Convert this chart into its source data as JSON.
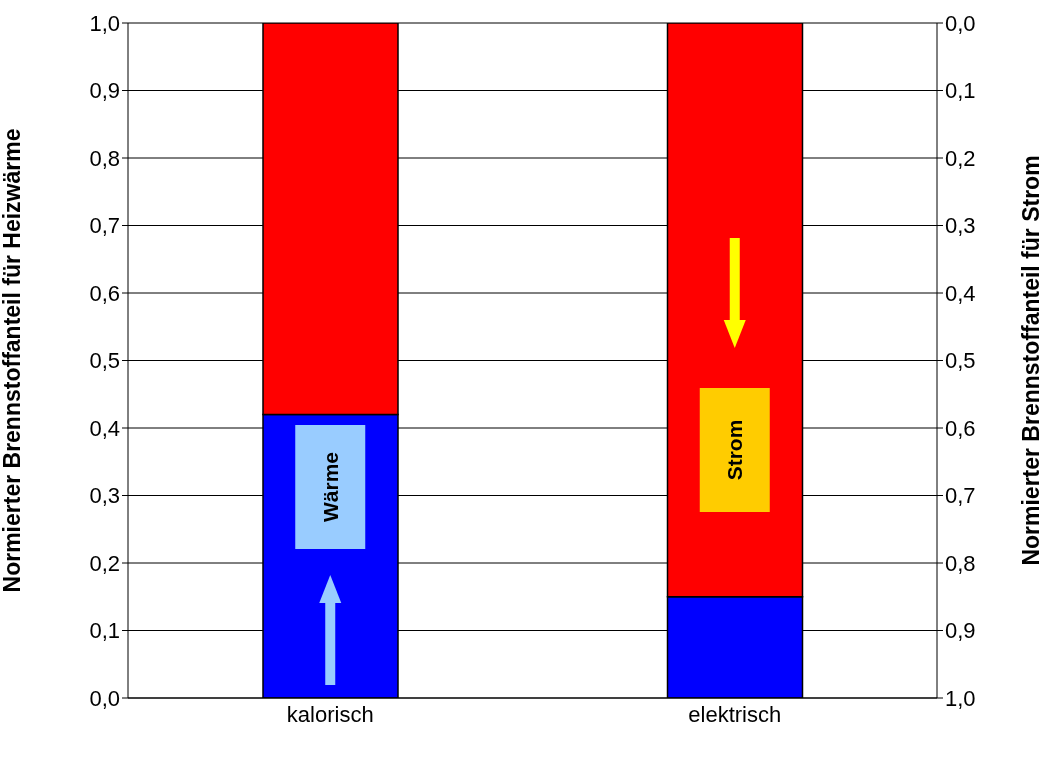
{
  "chart_data": {
    "type": "bar",
    "stacked": true,
    "categories": [
      "kalorisch",
      "elektrisch"
    ],
    "series": [
      {
        "color": "#0000ff",
        "values": [
          0.42,
          0.15
        ]
      },
      {
        "color": "#ff0000",
        "values": [
          0.58,
          0.85
        ]
      }
    ],
    "ylim": [
      0,
      1
    ],
    "yticks": [
      {
        "value": 0,
        "label": "0,0"
      },
      {
        "value": 0.1,
        "label": "0,1"
      },
      {
        "value": 0.2,
        "label": "0,2"
      },
      {
        "value": 0.3,
        "label": "0,3"
      },
      {
        "value": 0.4,
        "label": "0,4"
      },
      {
        "value": 0.5,
        "label": "0,5"
      },
      {
        "value": 0.6,
        "label": "0,6"
      },
      {
        "value": 0.7,
        "label": "0,7"
      },
      {
        "value": 0.8,
        "label": "0,8"
      },
      {
        "value": 0.9,
        "label": "0,9"
      },
      {
        "value": 1,
        "label": "1,0"
      }
    ],
    "y2lim": [
      1,
      0
    ],
    "y2ticks": [
      {
        "value": 1,
        "label": "1,0"
      },
      {
        "value": 0.9,
        "label": "0,9"
      },
      {
        "value": 0.8,
        "label": "0,8"
      },
      {
        "value": 0.7,
        "label": "0,7"
      },
      {
        "value": 0.6,
        "label": "0,6"
      },
      {
        "value": 0.5,
        "label": "0,5"
      },
      {
        "value": 0.4,
        "label": "0,4"
      },
      {
        "value": 0.3,
        "label": "0,3"
      },
      {
        "value": 0.2,
        "label": "0,2"
      },
      {
        "value": 0.1,
        "label": "0,1"
      },
      {
        "value": 0,
        "label": "0,0"
      }
    ],
    "ylabel": "Normierter Brennstoffanteil für Heizwärme",
    "y2label": "Normierter Brennstoffanteil für Strom",
    "annotations": [
      "Wärme",
      "Strom"
    ],
    "grid": "y"
  }
}
